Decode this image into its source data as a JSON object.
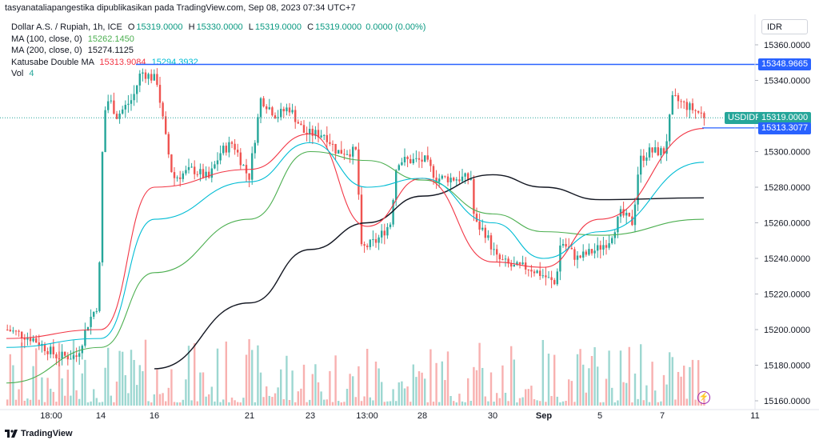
{
  "header": {
    "published_by": "tasyanataliapangestika dipublikasikan pada TradingView.com, Sep 08, 2023 07:34 UTC+7"
  },
  "legend": {
    "symbol": "Dollar A.S. / Rupiah, 1h, ICE",
    "ohlc": [
      {
        "k": "O",
        "v": "15319.0000"
      },
      {
        "k": "H",
        "v": "15330.0000"
      },
      {
        "k": "L",
        "v": "15319.0000"
      },
      {
        "k": "C",
        "v": "15319.0000"
      }
    ],
    "change": "0.0000 (0.00%)",
    "ma100_label": "MA (100, close, 0)",
    "ma100_value": "15262.1450",
    "ma200_label": "MA (200, close, 0)",
    "ma200_value": "15274.1125",
    "dma_label": "Katusabe Double MA",
    "dma_value_1": "15313.9084",
    "dma_value_2": "15294.3932",
    "vol_label": "Vol",
    "vol_value": "4"
  },
  "currency": "IDR",
  "price_tags": {
    "line_level": "15348.9665",
    "symbol_tag_label": "USDIDR",
    "last_price": "15319.0000",
    "ma_tag": "15313.3077"
  },
  "footer": {
    "brand": "TradingView"
  },
  "colors": {
    "up": "#26a69a",
    "down": "#ef5350",
    "ma100": "#4caf50",
    "ma200": "#131722",
    "dma_fast": "#f23645",
    "dma_slow": "#00bcd4",
    "hline": "#2962ff"
  },
  "chart_data": {
    "type": "line",
    "title": "Dollar A.S. / Rupiah, 1h, ICE",
    "y_axis_ticks": [
      "15360.0000",
      "15340.0000",
      "15320.0000",
      "15300.0000",
      "15280.0000",
      "15260.0000",
      "15240.0000",
      "15220.0000",
      "15200.0000",
      "15180.0000",
      "15160.0000"
    ],
    "x_axis_ticks": [
      "18:00",
      "14",
      "16",
      "21",
      "23",
      "13:00",
      "28",
      "30",
      "Sep",
      "5",
      "7",
      "11"
    ],
    "ylim": [
      15160,
      15360
    ],
    "horizontal_line": 15348.9665,
    "last_price": 15319.0,
    "series": [
      {
        "name": "MA (100, close, 0)",
        "color": "#4caf50",
        "x": [
          "18:00",
          "14",
          "16",
          "21",
          "23",
          "13:00",
          "28",
          "30",
          "Sep",
          "5",
          "7"
        ],
        "values": [
          15170,
          15190,
          15232,
          15262,
          15300,
          15295,
          15284,
          15265,
          15255,
          15253,
          15262
        ]
      },
      {
        "name": "MA (200, close, 0)",
        "color": "#131722",
        "x": [
          "16",
          "21",
          "23",
          "13:00",
          "28",
          "30",
          "Sep",
          "5",
          "7"
        ],
        "values": [
          15178,
          15215,
          15245,
          15260,
          15275,
          15287,
          15280,
          15273,
          15274
        ]
      },
      {
        "name": "Katusabe Double MA",
        "color": "#f23645",
        "x": [
          "18:00",
          "14",
          "16",
          "21",
          "23",
          "13:00",
          "28",
          "30",
          "Sep",
          "5",
          "7"
        ],
        "values": [
          15195,
          15200,
          15280,
          15290,
          15310,
          15258,
          15285,
          15238,
          15235,
          15262,
          15313
        ]
      },
      {
        "name": "Katusabe Double MA",
        "color": "#00bcd4",
        "x": [
          "18:00",
          "14",
          "16",
          "21",
          "23",
          "13:00",
          "28",
          "30",
          "Sep",
          "5",
          "7"
        ],
        "values": [
          15190,
          15195,
          15262,
          15283,
          15305,
          15280,
          15285,
          15260,
          15240,
          15255,
          15294
        ]
      }
    ]
  }
}
